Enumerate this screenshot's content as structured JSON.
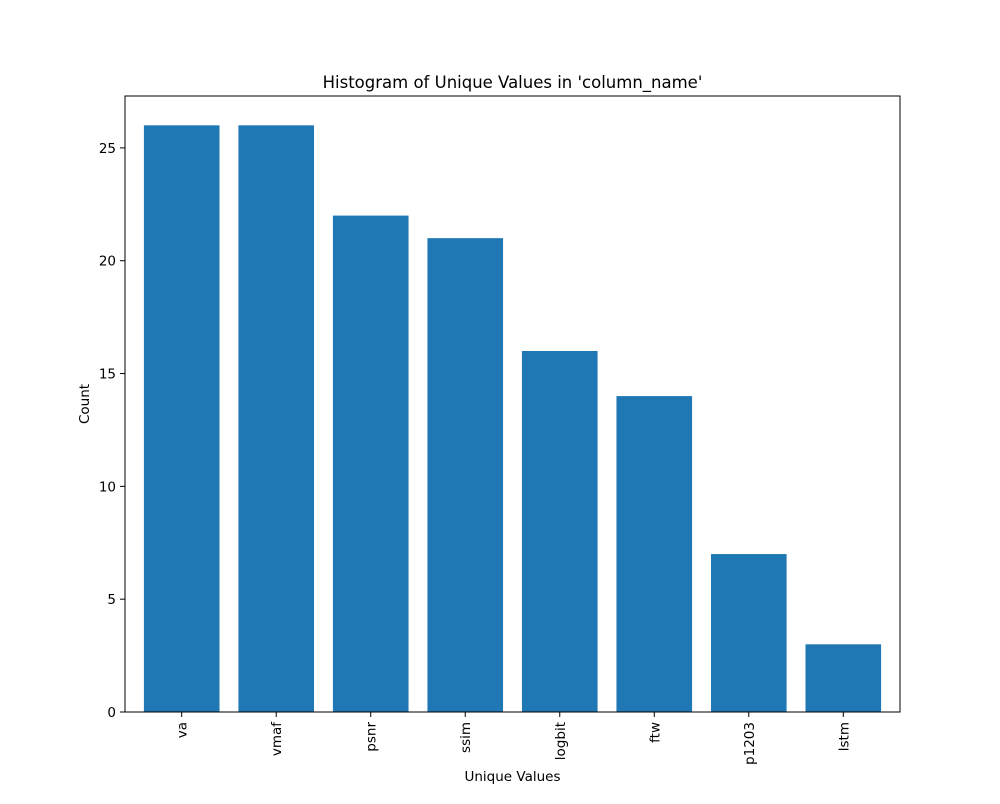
{
  "chart_data": {
    "type": "bar",
    "title": "Histogram of Unique Values in 'column_name'",
    "xlabel": "Unique Values",
    "ylabel": "Count",
    "categories": [
      "va",
      "vmaf",
      "psnr",
      "ssim",
      "logbit",
      "ftw",
      "p1203",
      "lstm"
    ],
    "values": [
      26,
      26,
      22,
      21,
      16,
      14,
      7,
      3
    ],
    "ylim": [
      0,
      27.3
    ],
    "yticks": [
      0,
      5,
      10,
      15,
      20,
      25
    ],
    "grid": false,
    "bar_color": "#1f77b4"
  }
}
